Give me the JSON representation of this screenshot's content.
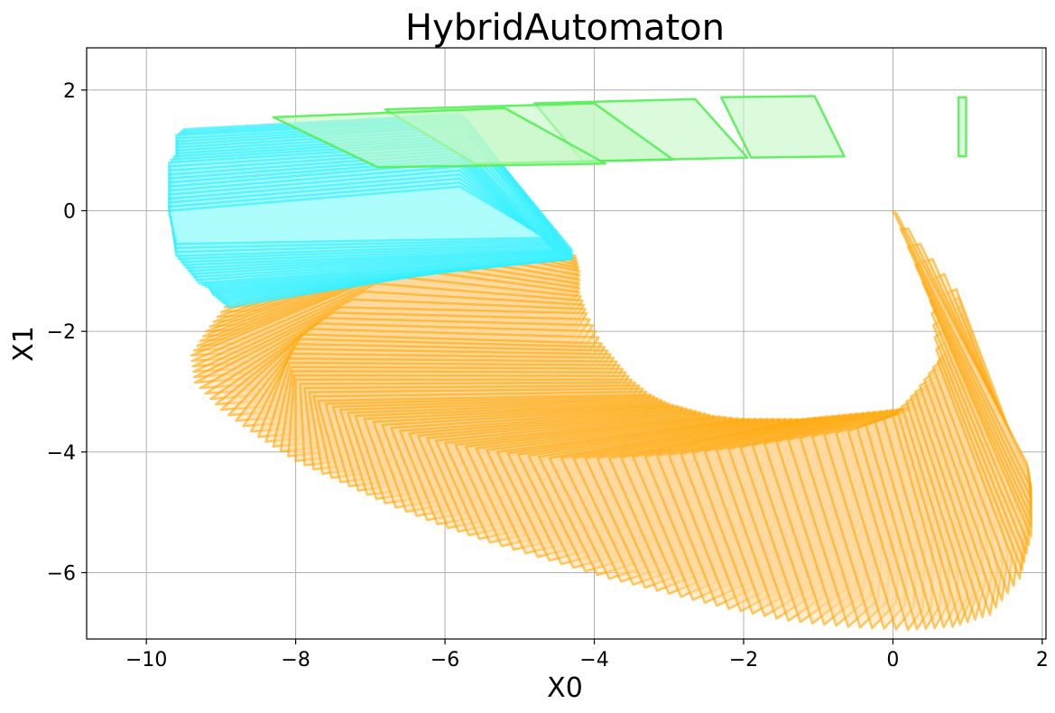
{
  "chart_data": {
    "type": "polygon-reachset",
    "title": "HybridAutomaton",
    "xlabel": "X0",
    "ylabel": "X1",
    "xlim": [
      -10.8,
      2.05
    ],
    "ylim": [
      -7.1,
      2.7
    ],
    "grid": true,
    "x_ticks": [
      -10,
      -8,
      -6,
      -4,
      -2,
      0,
      2
    ],
    "y_ticks": [
      -6,
      -4,
      -2,
      0,
      2
    ],
    "x_tick_labels": [
      "−10",
      "−8",
      "−6",
      "−4",
      "−2",
      "0",
      "2"
    ],
    "y_tick_labels": [
      "−6",
      "−4",
      "−2",
      "0",
      "2"
    ],
    "colors": {
      "orange_fill": "#ffd9a0",
      "orange_stroke": "#ffa500",
      "cyan_fill": "#aefcfc",
      "cyan_stroke": "#33f0ff",
      "green_fill": "#c4f9c4",
      "green_stroke": "#55ee55"
    },
    "series": [
      {
        "mode": "orange",
        "description": "sequence of reachable parallelograms spiralling from origin",
        "polygons": [
          [
            [
              -5.5,
              -0.25
            ],
            [
              -4.25,
              -0.75
            ],
            [
              -4.6,
              -1.35
            ],
            [
              -8.95,
              -1.6
            ]
          ],
          [
            [
              -6.0,
              -0.55
            ],
            [
              -4.2,
              -1.0
            ],
            [
              -4.6,
              -1.6
            ],
            [
              -9.2,
              -2.0
            ]
          ],
          [
            [
              -6.6,
              -0.95
            ],
            [
              -4.2,
              -1.35
            ],
            [
              -4.6,
              -2.0
            ],
            [
              -9.4,
              -2.4
            ]
          ],
          [
            [
              -7.4,
              -1.6
            ],
            [
              -4.1,
              -1.7
            ],
            [
              -4.45,
              -2.4
            ],
            [
              -9.35,
              -2.85
            ]
          ],
          [
            [
              -7.9,
              -2.05
            ],
            [
              -3.9,
              -2.2
            ],
            [
              -4.3,
              -2.9
            ],
            [
              -9.0,
              -3.3
            ]
          ],
          [
            [
              -8.1,
              -2.45
            ],
            [
              -3.7,
              -2.5
            ],
            [
              -4.1,
              -3.3
            ],
            [
              -8.5,
              -3.75
            ]
          ],
          [
            [
              -8.0,
              -2.8
            ],
            [
              -3.5,
              -2.8
            ],
            [
              -3.9,
              -3.6
            ],
            [
              -8.0,
              -4.15
            ]
          ],
          [
            [
              -7.7,
              -3.15
            ],
            [
              -3.25,
              -3.05
            ],
            [
              -3.7,
              -3.9
            ],
            [
              -7.4,
              -4.5
            ]
          ],
          [
            [
              -7.2,
              -3.4
            ],
            [
              -3.0,
              -3.2
            ],
            [
              -3.4,
              -4.2
            ],
            [
              -6.8,
              -4.85
            ]
          ],
          [
            [
              -6.6,
              -3.65
            ],
            [
              -2.7,
              -3.3
            ],
            [
              -3.1,
              -4.5
            ],
            [
              -6.1,
              -5.2
            ]
          ],
          [
            [
              -6.0,
              -3.85
            ],
            [
              -2.4,
              -3.4
            ],
            [
              -2.8,
              -4.8
            ],
            [
              -5.4,
              -5.5
            ]
          ],
          [
            [
              -5.3,
              -4.0
            ],
            [
              -2.0,
              -3.45
            ],
            [
              -2.4,
              -5.1
            ],
            [
              -4.6,
              -5.8
            ]
          ],
          [
            [
              -4.6,
              -4.1
            ],
            [
              -1.6,
              -3.45
            ],
            [
              -2.0,
              -5.4
            ],
            [
              -3.8,
              -6.1
            ]
          ],
          [
            [
              -3.8,
              -4.1
            ],
            [
              -1.2,
              -3.45
            ],
            [
              -1.6,
              -5.65
            ],
            [
              -3.0,
              -6.35
            ]
          ],
          [
            [
              -3.0,
              -4.05
            ],
            [
              -0.8,
              -3.4
            ],
            [
              -1.15,
              -5.95
            ],
            [
              -2.2,
              -6.6
            ]
          ],
          [
            [
              -2.2,
              -3.95
            ],
            [
              -0.4,
              -3.35
            ],
            [
              -0.7,
              -6.2
            ],
            [
              -1.4,
              -6.8
            ]
          ],
          [
            [
              -1.4,
              -3.8
            ],
            [
              0.0,
              -3.3
            ],
            [
              -0.2,
              -6.45
            ],
            [
              -0.6,
              -6.9
            ]
          ],
          [
            [
              -0.6,
              -3.65
            ],
            [
              0.5,
              -3.2
            ],
            [
              0.4,
              -6.6
            ],
            [
              0.2,
              -6.95
            ]
          ],
          [
            [
              0.0,
              -3.4
            ],
            [
              0.8,
              -3.0
            ],
            [
              1.0,
              -6.4
            ],
            [
              0.8,
              -6.9
            ]
          ],
          [
            [
              0.3,
              -3.0
            ],
            [
              0.95,
              -2.6
            ],
            [
              1.4,
              -6.0
            ],
            [
              1.3,
              -6.7
            ]
          ],
          [
            [
              0.6,
              -2.5
            ],
            [
              1.0,
              -2.0
            ],
            [
              1.75,
              -5.3
            ],
            [
              1.7,
              -6.1
            ]
          ],
          [
            [
              0.5,
              -1.5
            ],
            [
              0.85,
              -1.3
            ],
            [
              1.85,
              -4.6
            ],
            [
              1.85,
              -5.4
            ]
          ],
          [
            [
              0.0,
              0.0
            ],
            [
              0.05,
              -0.05
            ],
            [
              1.8,
              -4.2
            ],
            [
              1.85,
              -4.6
            ]
          ]
        ]
      },
      {
        "mode": "cyan",
        "description": "reachable parallelograms in upper left",
        "polygons": [
          [
            [
              -9.5,
              1.35
            ],
            [
              -5.8,
              1.6
            ],
            [
              -4.3,
              -0.65
            ],
            [
              -8.9,
              -1.6
            ]
          ],
          [
            [
              -9.6,
              1.25
            ],
            [
              -5.7,
              1.5
            ],
            [
              -4.3,
              -0.75
            ],
            [
              -9.0,
              -1.5
            ]
          ],
          [
            [
              -9.6,
              1.1
            ],
            [
              -5.7,
              1.4
            ],
            [
              -4.3,
              -0.8
            ],
            [
              -9.1,
              -1.4
            ]
          ],
          [
            [
              -9.6,
              0.95
            ],
            [
              -5.7,
              1.25
            ],
            [
              -4.35,
              -0.8
            ],
            [
              -9.15,
              -1.3
            ]
          ],
          [
            [
              -9.7,
              0.8
            ],
            [
              -5.8,
              1.1
            ],
            [
              -4.4,
              -0.75
            ],
            [
              -9.3,
              -1.2
            ]
          ],
          [
            [
              -9.7,
              0.6
            ],
            [
              -5.8,
              0.95
            ],
            [
              -4.5,
              -0.7
            ],
            [
              -9.4,
              -1.05
            ]
          ],
          [
            [
              -9.7,
              0.4
            ],
            [
              -5.8,
              0.8
            ],
            [
              -4.55,
              -0.65
            ],
            [
              -9.5,
              -0.9
            ]
          ],
          [
            [
              -9.7,
              0.2
            ],
            [
              -5.8,
              0.6
            ],
            [
              -4.6,
              -0.55
            ],
            [
              -9.6,
              -0.75
            ]
          ],
          [
            [
              -9.7,
              0.0
            ],
            [
              -5.8,
              0.4
            ],
            [
              -4.65,
              -0.45
            ],
            [
              -9.6,
              -0.55
            ]
          ]
        ]
      },
      {
        "mode": "green",
        "description": "reachable parallelograms along top",
        "polygons": [
          [
            [
              0.88,
              1.88
            ],
            [
              0.98,
              1.88
            ],
            [
              0.98,
              0.9
            ],
            [
              0.88,
              0.9
            ]
          ],
          [
            [
              -2.3,
              1.88
            ],
            [
              -1.05,
              1.9
            ],
            [
              -0.65,
              0.9
            ],
            [
              -1.9,
              0.88
            ]
          ],
          [
            [
              -4.8,
              1.78
            ],
            [
              -2.65,
              1.85
            ],
            [
              -1.95,
              0.88
            ],
            [
              -4.15,
              0.82
            ]
          ],
          [
            [
              -6.8,
              1.68
            ],
            [
              -4.0,
              1.78
            ],
            [
              -2.95,
              0.85
            ],
            [
              -5.6,
              0.78
            ]
          ],
          [
            [
              -8.3,
              1.55
            ],
            [
              -5.2,
              1.7
            ],
            [
              -3.85,
              0.78
            ],
            [
              -6.9,
              0.72
            ]
          ]
        ]
      }
    ]
  }
}
